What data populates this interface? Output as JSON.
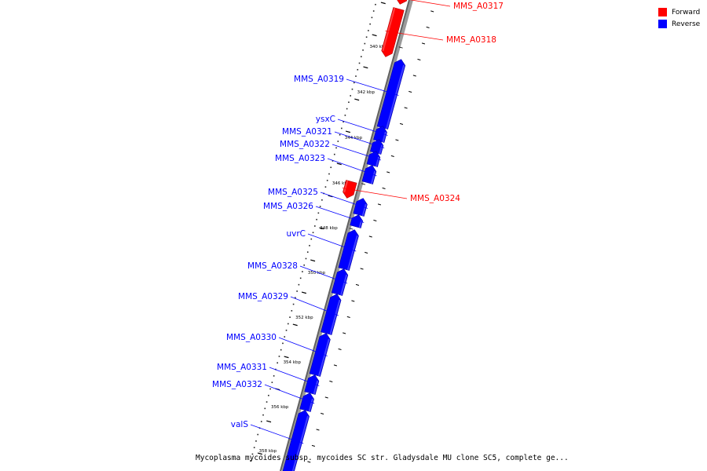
{
  "legend": {
    "forward_label": "Forward",
    "reverse_label": "Reverse",
    "forward_color": "#ff0000",
    "reverse_color": "#0000ff"
  },
  "caption": "Mycoplasma mycoides subsp. mycoides SC str. Gladysdale MU clone SC5, complete ge...",
  "scale": {
    "ticks": [
      {
        "kbp": 340,
        "label": "340 kbp"
      },
      {
        "kbp": 342,
        "label": "342 kbp"
      },
      {
        "kbp": 344,
        "label": "344 kbp"
      },
      {
        "kbp": 346,
        "label": "346 kbp"
      },
      {
        "kbp": 348,
        "label": "348 kbp"
      },
      {
        "kbp": 350,
        "label": "350 kbp"
      },
      {
        "kbp": 352,
        "label": "352 kbp"
      },
      {
        "kbp": 354,
        "label": "354 kbp"
      },
      {
        "kbp": 356,
        "label": "356 kbp"
      },
      {
        "kbp": 358,
        "label": "358 kbp"
      }
    ]
  },
  "genes": [
    {
      "name": "MMS_A0317",
      "strand": "forward"
    },
    {
      "name": "MMS_A0318",
      "strand": "forward"
    },
    {
      "name": "MMS_A0319",
      "strand": "reverse"
    },
    {
      "name": "ysxC",
      "strand": "reverse"
    },
    {
      "name": "MMS_A0321",
      "strand": "reverse"
    },
    {
      "name": "MMS_A0322",
      "strand": "reverse"
    },
    {
      "name": "MMS_A0323",
      "strand": "reverse"
    },
    {
      "name": "MMS_A0324",
      "strand": "forward"
    },
    {
      "name": "MMS_A0325",
      "strand": "reverse"
    },
    {
      "name": "MMS_A0326",
      "strand": "reverse"
    },
    {
      "name": "uvrC",
      "strand": "reverse"
    },
    {
      "name": "MMS_A0328",
      "strand": "reverse"
    },
    {
      "name": "MMS_A0329",
      "strand": "reverse"
    },
    {
      "name": "MMS_A0330",
      "strand": "reverse"
    },
    {
      "name": "MMS_A0331",
      "strand": "reverse"
    },
    {
      "name": "MMS_A0332",
      "strand": "reverse"
    },
    {
      "name": "valS",
      "strand": "reverse"
    }
  ]
}
